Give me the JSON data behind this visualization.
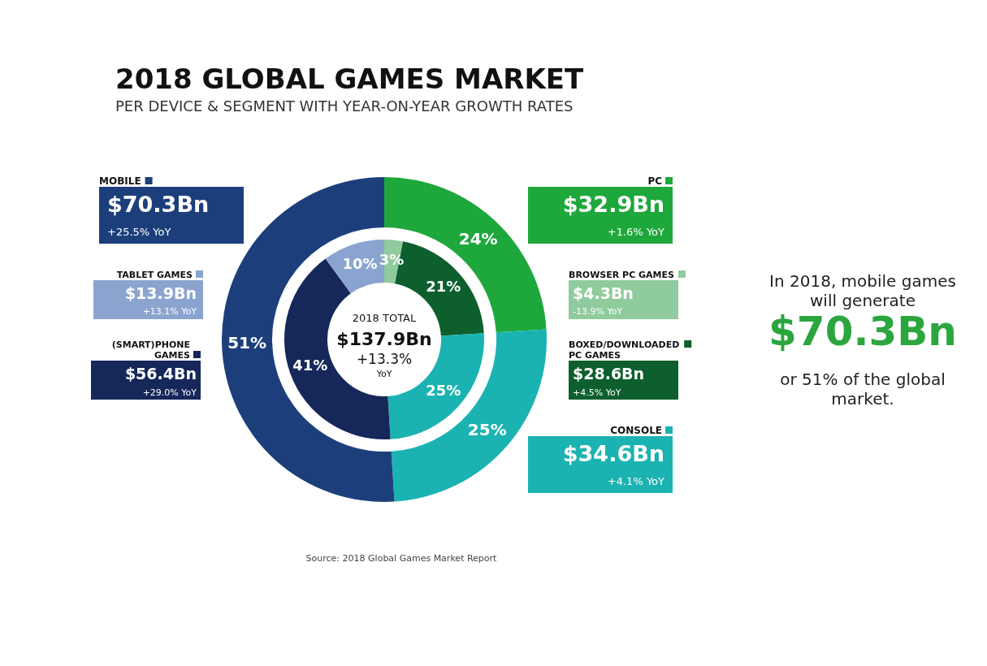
{
  "chart_data": {
    "type": "donut",
    "title": "2018 GLOBAL GAMES MARKET",
    "subtitle": "PER DEVICE & SEGMENT WITH YEAR-ON-YEAR GROWTH RATES",
    "categories": [
      "PC",
      "BROWSER PC GAMES",
      "BOXED/DOWNLOADED PC GAMES",
      "CONSOLE",
      "MOBILE",
      "(SMART)PHONE GAMES",
      "TABLET GAMES"
    ],
    "series": [
      {
        "values": [
          24,
          null,
          null,
          25,
          51,
          null,
          null
        ],
        "colors": [
          "#1ea83c",
          null,
          null,
          "#1bb3b1",
          "#1c3f7c",
          null,
          null
        ],
        "value_labels": [
          "24%",
          null,
          null,
          "25%",
          "51%",
          null,
          null
        ]
      },
      {
        "values": [
          null,
          3,
          21,
          25,
          null,
          41,
          10
        ],
        "colors": [
          null,
          "#8fcb9c",
          "#0d5f2d",
          "#1bb3b1",
          null,
          "#16275a",
          "#8ba4cf"
        ],
        "value_labels": [
          null,
          "3%",
          "21%",
          "25%",
          null,
          "41%",
          "10%"
        ]
      }
    ],
    "legend": "right",
    "annotations": [
      "$32.9Bn",
      "+1.6% YoY",
      "$4.3Bn",
      "-13.9% YoY",
      "$28.6Bn",
      "+4.5% YoY",
      "$34.6Bn",
      "+4.1% YoY",
      "$70.3Bn",
      "+25.5% YoY",
      "$56.4Bn",
      "+29.0% YoY",
      "$13.9Bn",
      "+13.1% YoY",
      "2018 TOTAL",
      "$137.9Bn",
      "+13.3%",
      "YoY",
      "In 2018, mobile games\nwill generate",
      "$70.3Bn",
      "or 51% of the global\nmarket.",
      "Source: 2018 Global Games Market Report"
    ]
  }
}
